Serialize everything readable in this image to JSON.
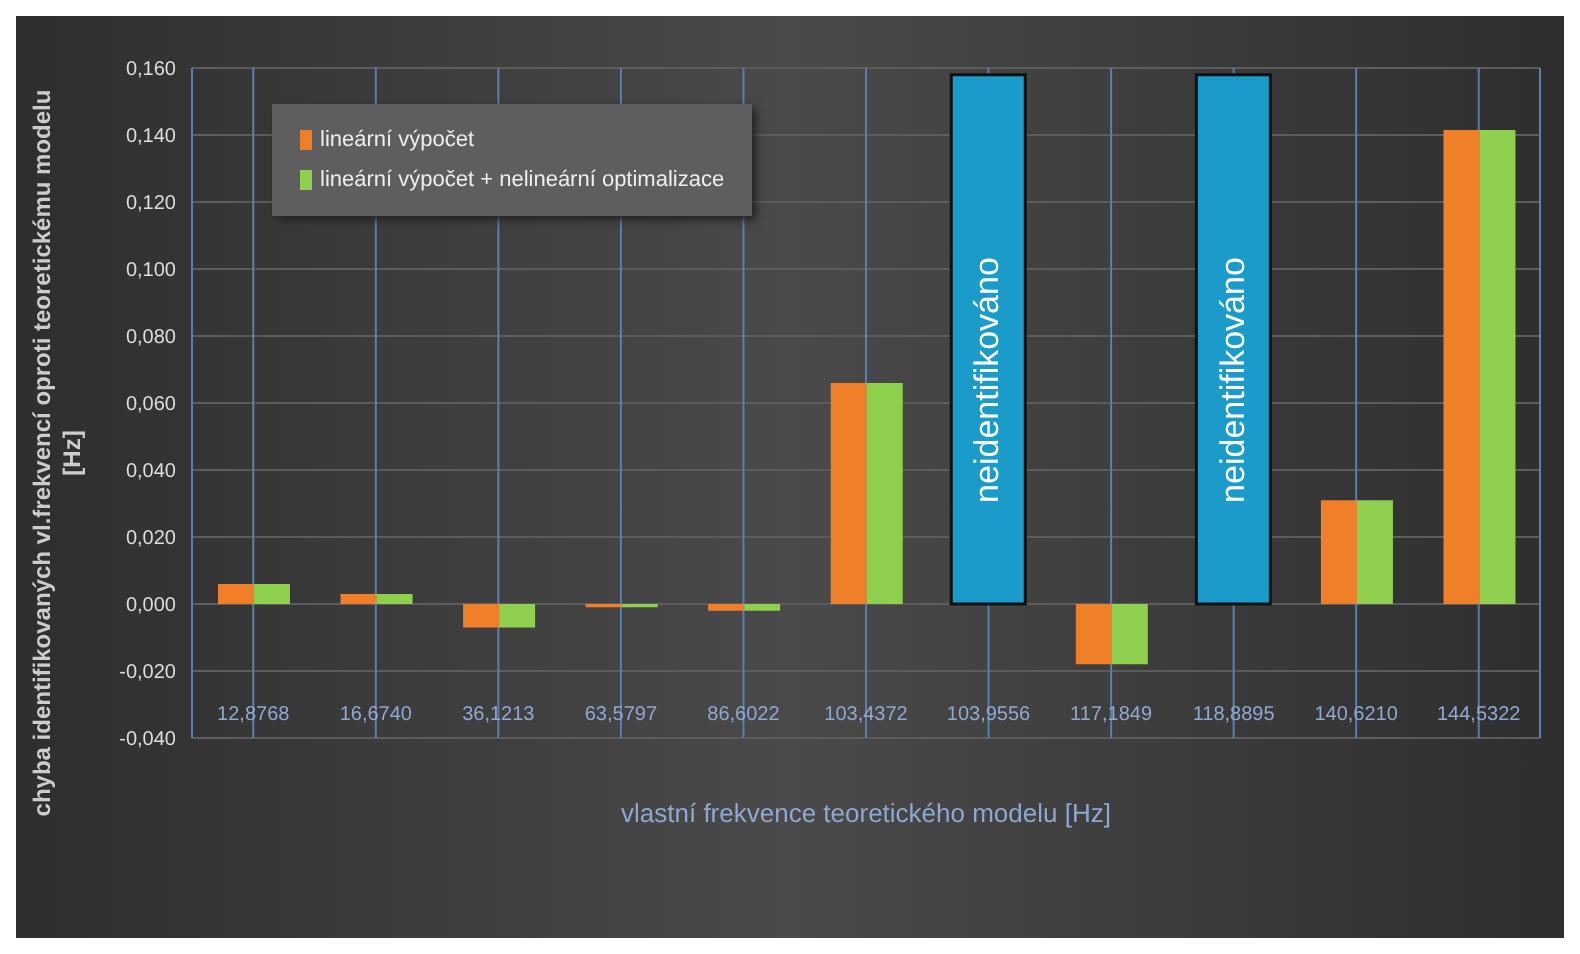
{
  "chart_data": {
    "type": "bar",
    "xlabel": "vlastní frekvence teoretického modelu [Hz]",
    "ylabel": "chyba identifikovaných vl.frekvencí oproti teoretickému modelu [Hz]",
    "categories": [
      "12,8768",
      "16,6740",
      "36,1213",
      "63,5797",
      "86,6022",
      "103,4372",
      "103,9556",
      "117,1849",
      "118,8895",
      "140,6210",
      "144,5322"
    ],
    "series": [
      {
        "name": "lineární výpočet",
        "color": "#f07f2a",
        "values": [
          0.006,
          0.003,
          -0.007,
          -0.001,
          -0.002,
          0.066,
          null,
          -0.018,
          null,
          0.031,
          0.1415
        ]
      },
      {
        "name": "lineární výpočet + nelineární optimalizace",
        "color": "#8fd14f",
        "values": [
          0.006,
          0.003,
          -0.007,
          -0.001,
          -0.002,
          0.066,
          null,
          -0.018,
          null,
          0.031,
          0.1415
        ]
      },
      {
        "color": "#1a9bc9",
        "values": [
          null,
          null,
          null,
          null,
          null,
          null,
          0.158,
          null,
          0.158,
          null,
          null
        ]
      }
    ],
    "annotations": [
      "neidentifikováno",
      "neidentifikováno"
    ],
    "ylim": [
      -0.04,
      0.16
    ],
    "yticks": [
      {
        "value": -0.04,
        "label": "-0,040"
      },
      {
        "value": -0.02,
        "label": "-0,020"
      },
      {
        "value": 0,
        "label": "0,000"
      },
      {
        "value": 0.02,
        "label": "0,020"
      },
      {
        "value": 0.04,
        "label": "0,040"
      },
      {
        "value": 0.06,
        "label": "0,060"
      },
      {
        "value": 0.08,
        "label": "0,080"
      },
      {
        "value": 0.1,
        "label": "0,100"
      },
      {
        "value": 0.12,
        "label": "0,120"
      },
      {
        "value": 0.14,
        "label": "0,140"
      },
      {
        "value": 0.16,
        "label": "0,160"
      }
    ],
    "grid": true,
    "legend": "top left"
  }
}
